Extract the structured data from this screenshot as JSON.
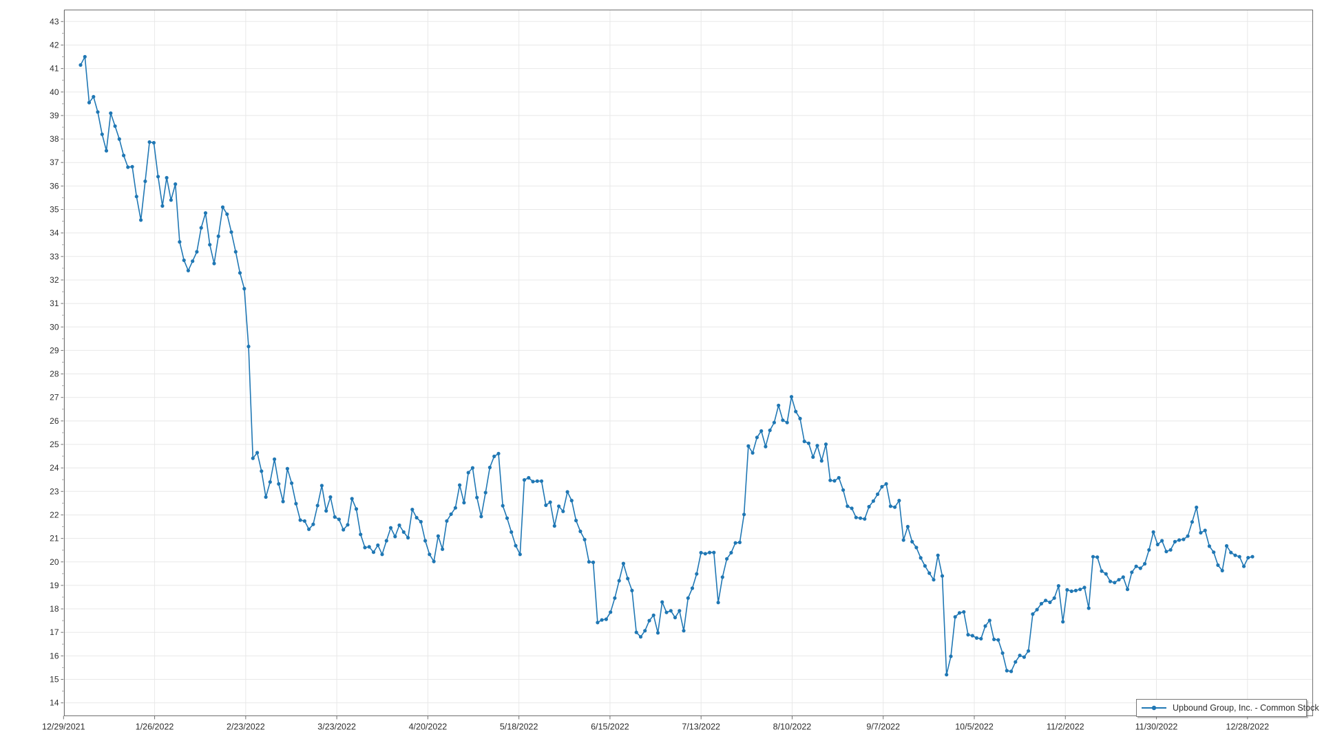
{
  "chart": {
    "legend_label": "Upbound Group, Inc. - Common Stock",
    "colors": {
      "series": "#1f77b4",
      "gridline": "#e8e8e8",
      "axis": "#6e6e6e",
      "tick": "#6e6e6e",
      "label_text": "#2e2e2e",
      "background": "#ffffff"
    }
  },
  "chart_data": {
    "type": "line",
    "title": "",
    "xlabel": "",
    "ylabel": "",
    "legend_position": "bottom-right",
    "grid": true,
    "markers": true,
    "x_tick_labels": [
      "12/29/2021",
      "1/26/2022",
      "2/23/2022",
      "3/23/2022",
      "4/20/2022",
      "5/18/2022",
      "6/15/2022",
      "7/13/2022",
      "8/10/2022",
      "9/7/2022",
      "10/5/2022",
      "11/2/2022",
      "11/30/2022",
      "12/28/2022"
    ],
    "y_ticks": {
      "min": 14,
      "max": 43,
      "step": 1
    },
    "ylim": [
      13.5,
      43.5
    ],
    "series": [
      {
        "name": "Upbound Group, Inc. - Common Stock",
        "color": "#1f77b4",
        "values": [
          41.15,
          41.5,
          39.55,
          39.8,
          39.15,
          38.2,
          37.5,
          39.1,
          38.55,
          38.0,
          37.3,
          36.8,
          36.82,
          35.55,
          34.55,
          36.2,
          37.87,
          37.84,
          36.4,
          35.15,
          36.35,
          35.4,
          36.08,
          33.62,
          32.84,
          32.4,
          32.8,
          33.2,
          34.22,
          34.85,
          33.5,
          32.7,
          33.86,
          35.1,
          34.8,
          34.04,
          33.2,
          32.3,
          31.63,
          29.17,
          24.41,
          24.65,
          23.86,
          22.76,
          23.4,
          24.37,
          23.32,
          22.57,
          23.97,
          23.35,
          22.48,
          21.78,
          21.74,
          21.39,
          21.6,
          22.4,
          23.25,
          22.17,
          22.76,
          21.91,
          21.81,
          21.37,
          21.58,
          22.69,
          22.25,
          21.17,
          20.61,
          20.64,
          20.41,
          20.71,
          20.32,
          20.9,
          21.45,
          21.08,
          21.56,
          21.27,
          21.03,
          22.23,
          21.88,
          21.71,
          20.9,
          20.32,
          20.02,
          21.1,
          20.54,
          21.74,
          22.03,
          22.3,
          23.27,
          22.52,
          23.8,
          24.0,
          22.74,
          21.93,
          22.95,
          24.02,
          24.49,
          24.61,
          22.39,
          21.86,
          21.27,
          20.69,
          20.32,
          23.49,
          23.58,
          23.42,
          23.44,
          23.44,
          22.41,
          22.54,
          21.53,
          22.37,
          22.15,
          22.98,
          22.61,
          21.76,
          21.3,
          20.95,
          20.0,
          19.98,
          17.42,
          17.53,
          17.56,
          17.86,
          18.46,
          19.2,
          19.93,
          19.29,
          18.78,
          17.0,
          16.81,
          17.07,
          17.5,
          17.73,
          16.98,
          18.29,
          17.85,
          17.92,
          17.63,
          17.92,
          17.07,
          18.46,
          18.88,
          19.49,
          20.39,
          20.35,
          20.4,
          20.4,
          18.27,
          19.35,
          20.13,
          20.39,
          20.81,
          20.83,
          22.02,
          24.93,
          24.64,
          25.3,
          25.57,
          24.91,
          25.6,
          25.93,
          26.66,
          26.03,
          25.93,
          27.03,
          26.4,
          26.1,
          25.13,
          25.05,
          24.46,
          24.95,
          24.3,
          25.01,
          23.47,
          23.45,
          23.58,
          23.06,
          22.37,
          22.28,
          21.89,
          21.86,
          21.83,
          22.35,
          22.59,
          22.88,
          23.2,
          23.32,
          22.37,
          22.33,
          22.61,
          20.93,
          21.5,
          20.86,
          20.61,
          20.17,
          19.83,
          19.52,
          19.24,
          20.28,
          19.4,
          15.2,
          15.98,
          17.66,
          17.83,
          17.87,
          16.9,
          16.86,
          16.76,
          16.73,
          17.27,
          17.51,
          16.7,
          16.68,
          16.12,
          15.37,
          15.34,
          15.74,
          16.02,
          15.95,
          16.21,
          17.78,
          17.97,
          18.22,
          18.36,
          18.28,
          18.46,
          18.98,
          17.45,
          18.81,
          18.75,
          18.78,
          18.83,
          18.91,
          18.03,
          20.22,
          20.2,
          19.61,
          19.49,
          19.17,
          19.12,
          19.24,
          19.35,
          18.83,
          19.56,
          19.81,
          19.73,
          19.92,
          20.51,
          21.27,
          20.74,
          20.9,
          20.44,
          20.51,
          20.86,
          20.93,
          20.96,
          21.1,
          21.7,
          22.32,
          21.24,
          21.34,
          20.67,
          20.41,
          19.86,
          19.63,
          20.68,
          20.4,
          20.28,
          20.22,
          19.81,
          20.18,
          20.22
        ]
      }
    ]
  }
}
